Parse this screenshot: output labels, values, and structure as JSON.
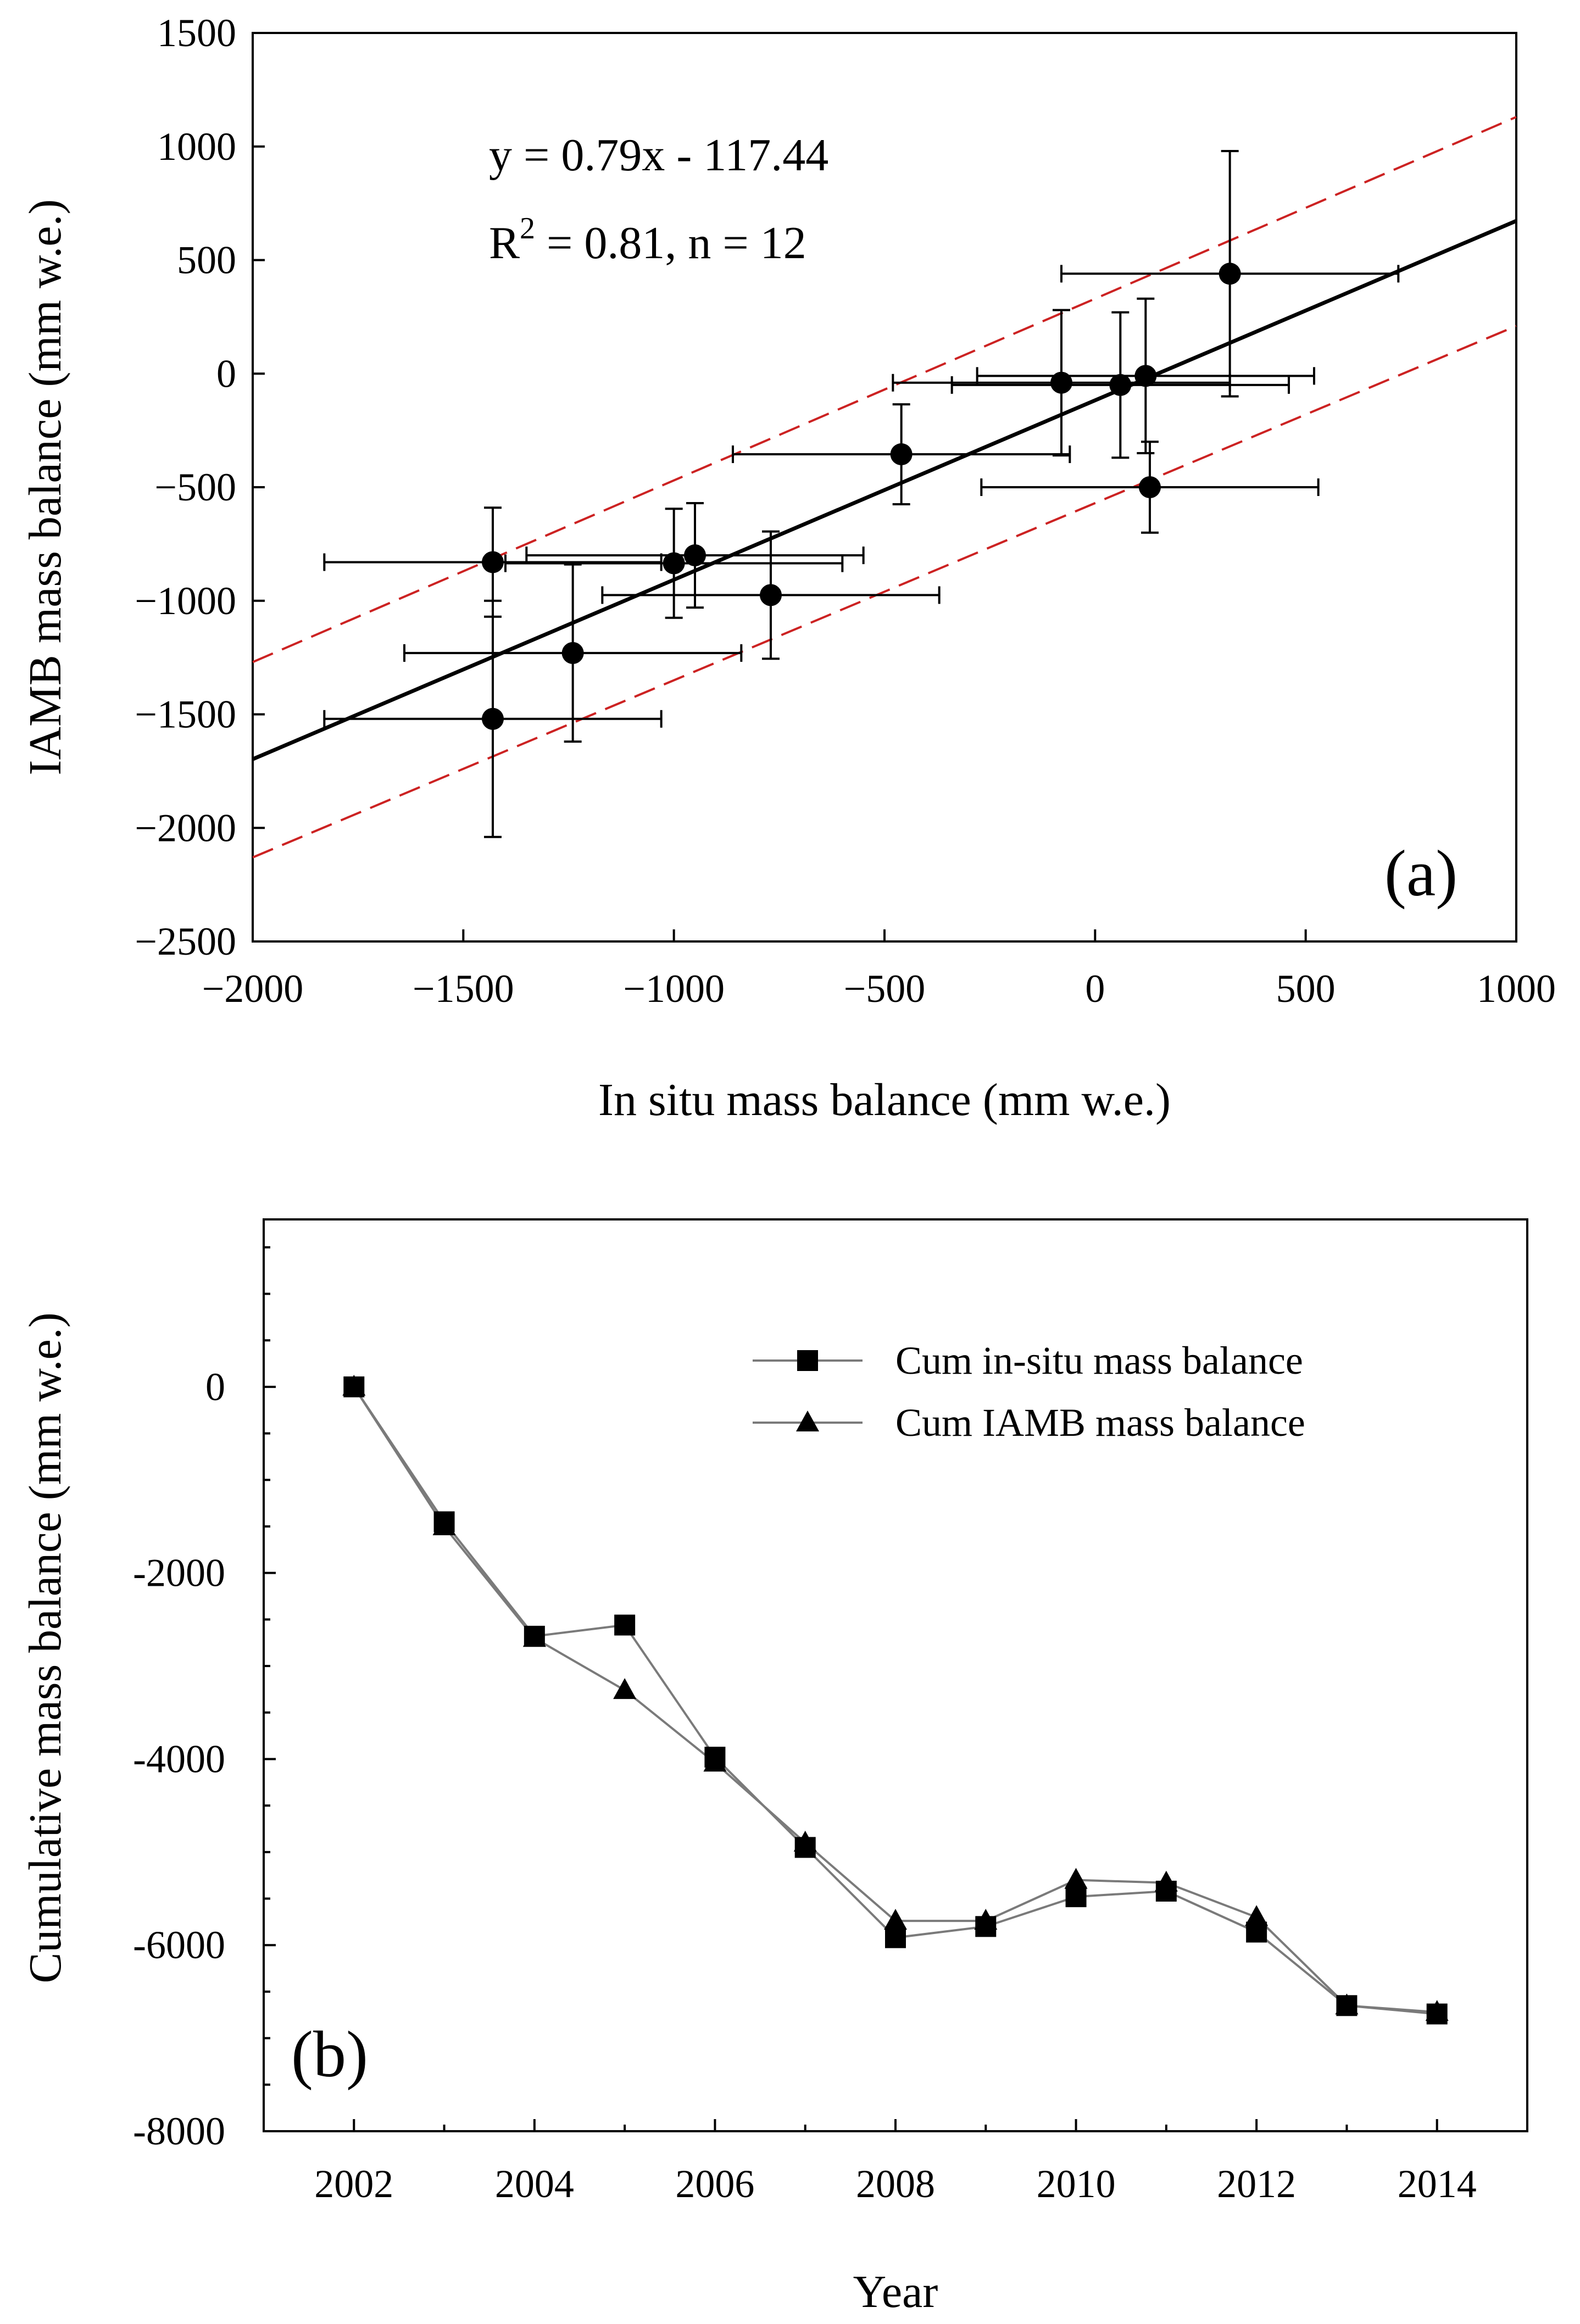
{
  "chart_data": [
    {
      "type": "scatter",
      "panel_label": "(a)",
      "xlabel": "In situ mass balance (mm w.e.)",
      "ylabel": "IAMB mass balance (mm w.e.)",
      "xlim": [
        -2000,
        1000
      ],
      "ylim": [
        -2500,
        1500
      ],
      "xticks": [
        -2000,
        -1500,
        -1000,
        -500,
        0,
        500,
        1000
      ],
      "xtick_labels": [
        "−2000",
        "−1500",
        "−1000",
        "−500",
        "0",
        "500",
        "1000"
      ],
      "yticks": [
        -2500,
        -2000,
        -1500,
        -1000,
        -500,
        0,
        500,
        1000,
        1500
      ],
      "ytick_labels": [
        "−2500",
        "−2000",
        "−1500",
        "−1000",
        "−500",
        "0",
        "500",
        "1000",
        "1500"
      ],
      "equation": "y = 0.79x - 117.44",
      "r2_prefix": "R",
      "r2_exp": "2",
      "r2_rest": " = 0.81,  n = 12",
      "fit": {
        "slope": 0.79,
        "intercept": -117.44
      },
      "ci_upper": [
        [
          -2000,
          -1270
        ],
        [
          1000,
          1130
        ]
      ],
      "ci_lower": [
        [
          -2000,
          -2130
        ],
        [
          1000,
          210
        ]
      ],
      "points": [
        {
          "x": 320,
          "y": 440,
          "xerr": 400,
          "yerr": 540
        },
        {
          "x": -80,
          "y": -40,
          "xerr": 400,
          "yerr": 320
        },
        {
          "x": 60,
          "y": -50,
          "xerr": 400,
          "yerr": 320
        },
        {
          "x": 120,
          "y": -10,
          "xerr": 400,
          "yerr": 340
        },
        {
          "x": 130,
          "y": -500,
          "xerr": 400,
          "yerr": 200
        },
        {
          "x": -460,
          "y": -355,
          "xerr": 400,
          "yerr": 220
        },
        {
          "x": -770,
          "y": -975,
          "xerr": 400,
          "yerr": 280
        },
        {
          "x": -950,
          "y": -800,
          "xerr": 400,
          "yerr": 230
        },
        {
          "x": -1000,
          "y": -835,
          "xerr": 400,
          "yerr": 240
        },
        {
          "x": -1430,
          "y": -830,
          "xerr": 400,
          "yerr": 240
        },
        {
          "x": -1240,
          "y": -1230,
          "xerr": 400,
          "yerr": 390
        },
        {
          "x": -1430,
          "y": -1520,
          "xerr": 400,
          "yerr": 520
        }
      ]
    },
    {
      "type": "line",
      "panel_label": "(b)",
      "xlabel": "Year",
      "ylabel": "Cumulative mass balance (mm w.e.)",
      "xlim": [
        2001,
        2015
      ],
      "ylim": [
        -8000,
        1800
      ],
      "xticks": [
        2002,
        2004,
        2006,
        2008,
        2010,
        2012,
        2014
      ],
      "xtick_labels": [
        "2002",
        "2004",
        "2006",
        "2008",
        "2010",
        "2012",
        "2014"
      ],
      "yticks": [
        -8000,
        -6000,
        -4000,
        -2000,
        0
      ],
      "ytick_labels": [
        "-8000",
        "-6000",
        "-4000",
        "-2000",
        "0"
      ],
      "x": [
        2002,
        2003,
        2004,
        2005,
        2006,
        2007,
        2008,
        2009,
        2010,
        2011,
        2012,
        2013,
        2014
      ],
      "series": [
        {
          "name": "Cum in-situ mass balance",
          "marker": "square",
          "values": [
            0,
            -1450,
            -2680,
            -2560,
            -3980,
            -4950,
            -5920,
            -5800,
            -5480,
            -5420,
            -5860,
            -6650,
            -6740
          ]
        },
        {
          "name": "Cum IAMB mass balance",
          "marker": "triangle",
          "values": [
            0,
            -1500,
            -2700,
            -3260,
            -4040,
            -4900,
            -5740,
            -5740,
            -5300,
            -5330,
            -5700,
            -6650,
            -6720
          ]
        }
      ]
    }
  ]
}
